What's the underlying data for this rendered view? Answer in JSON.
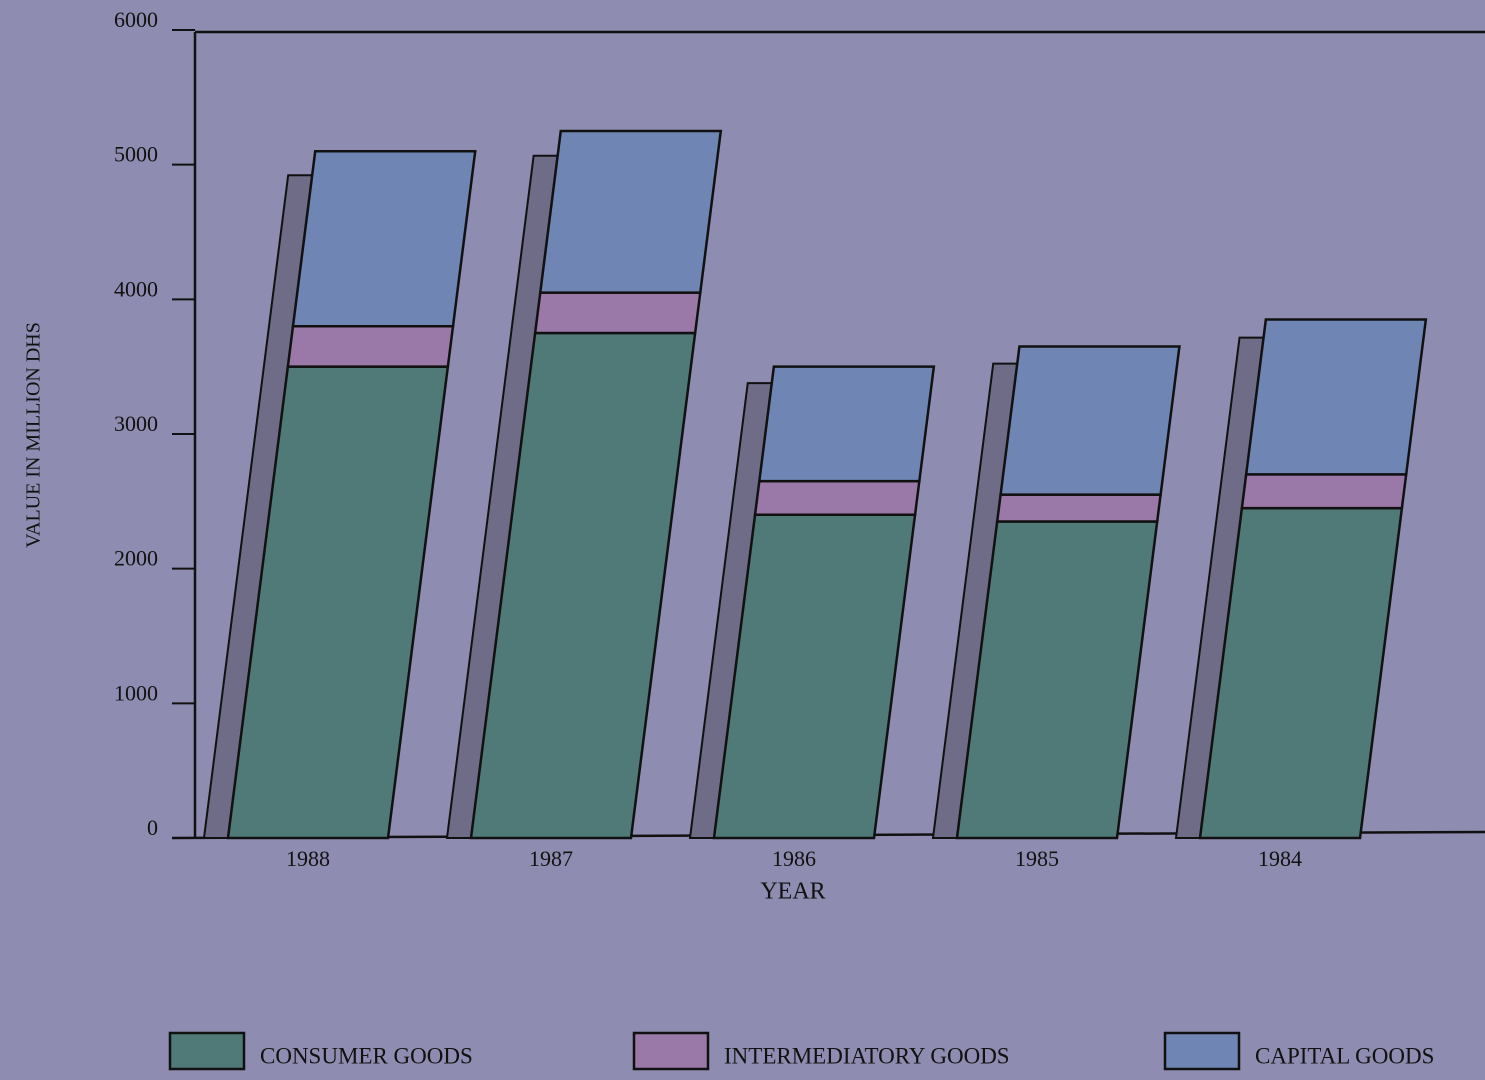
{
  "chart_data": {
    "type": "stacked-bar",
    "y_label": "VALUE IN MILLION DHS",
    "x_label": "YEAR",
    "categories": [
      "1988",
      "1987",
      "1986",
      "1985",
      "1984"
    ],
    "series": [
      {
        "name": "CONSUMER GOODS",
        "color": "#4f7a78",
        "values": [
          3500,
          3750,
          2400,
          2350,
          2450
        ]
      },
      {
        "name": "INTERMEDIATORY GOODS",
        "color": "#9a78a8",
        "values": [
          300,
          300,
          250,
          200,
          250
        ]
      },
      {
        "name": "CAPITAL GOODS",
        "color": "#6f86b4",
        "values": [
          1300,
          1200,
          850,
          1100,
          1150
        ]
      }
    ],
    "ylim": [
      0,
      6000
    ],
    "yticks": [
      0,
      1000,
      2000,
      3000,
      4000,
      5000,
      6000
    ]
  }
}
